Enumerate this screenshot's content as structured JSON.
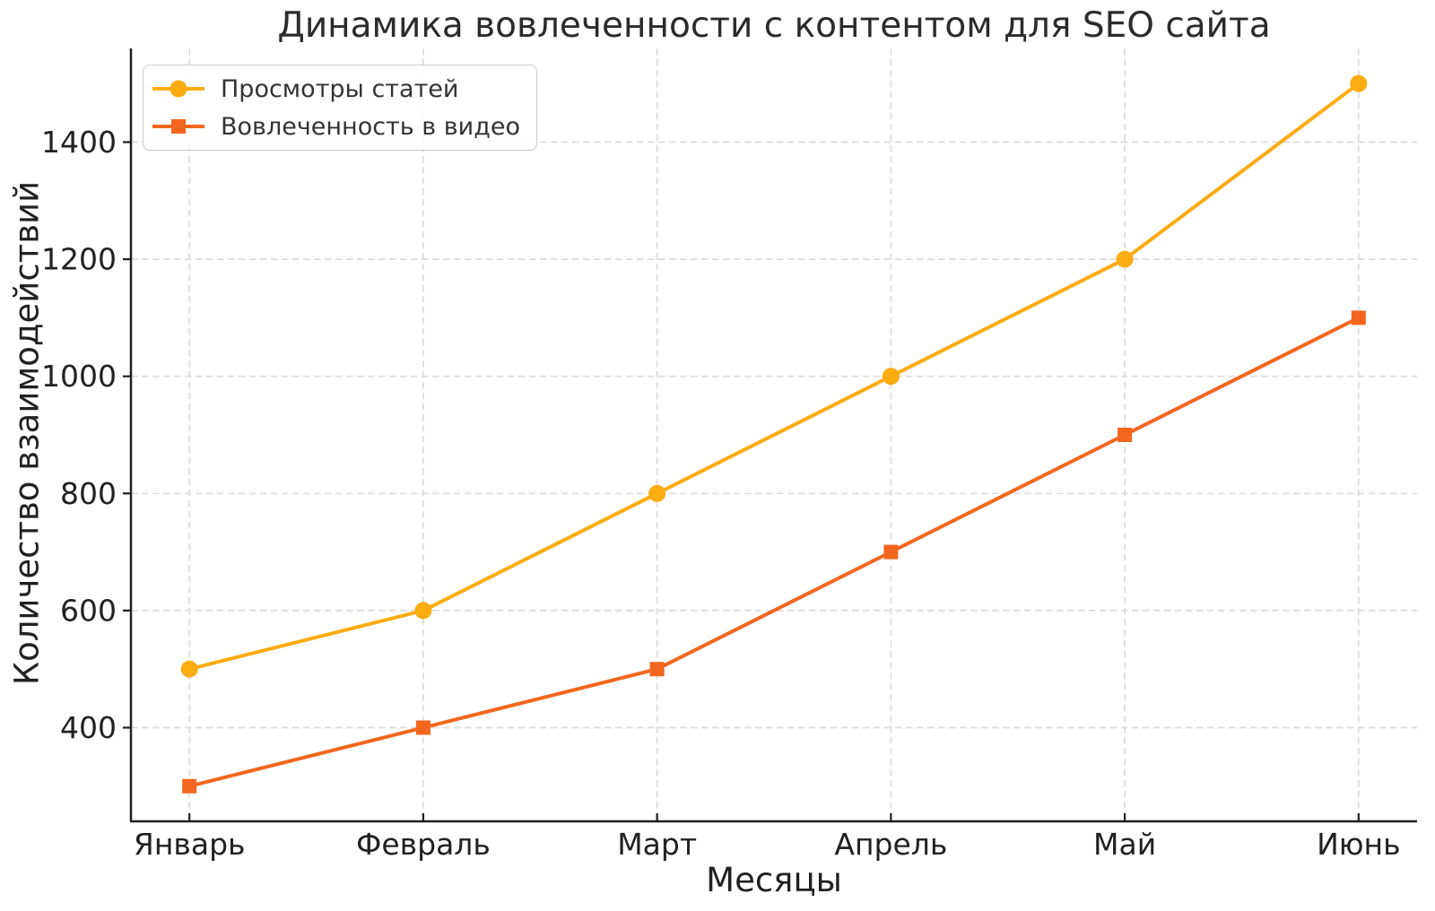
{
  "chart_data": {
    "type": "line",
    "title": "Динамика вовлеченности с контентом для SEO сайта",
    "xlabel": "Месяцы",
    "ylabel": "Количество взаимодействий",
    "categories": [
      "Январь",
      "Февраль",
      "Март",
      "Апрель",
      "Май",
      "Июнь"
    ],
    "series": [
      {
        "name": "Просмотры статей",
        "marker": "circle",
        "color": "#FBAC11",
        "values": [
          500,
          600,
          800,
          1000,
          1200,
          1500
        ]
      },
      {
        "name": "Вовлеченность в видео",
        "marker": "square",
        "color": "#F2661E",
        "values": [
          300,
          400,
          500,
          700,
          900,
          1100
        ]
      }
    ],
    "yticks": [
      400,
      600,
      800,
      1000,
      1200,
      1400
    ],
    "ylim": [
      240,
      1560
    ],
    "xlim": [
      -0.25,
      5.25
    ],
    "grid": true,
    "grid_style": "dashed",
    "legend_position": "upper-left"
  },
  "colors": {
    "grid": "#dcdcdc",
    "spine": "#1f1f1f",
    "tick_text": "#212121",
    "legend_border": "#cccccc"
  }
}
